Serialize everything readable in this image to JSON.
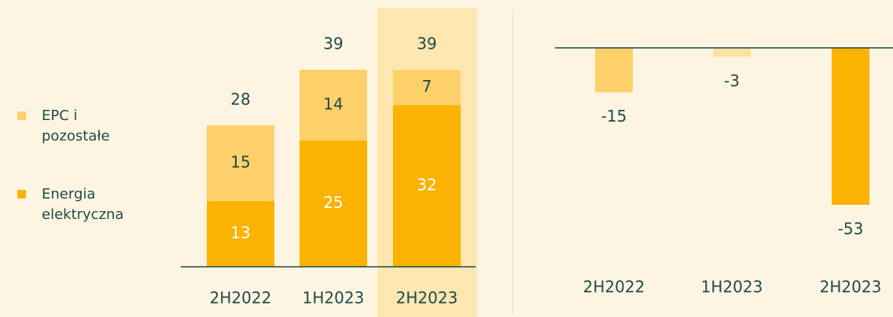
{
  "chart_data": [
    {
      "type": "bar",
      "stacked": true,
      "categories": [
        "2H2022",
        "1H2023",
        "2H2023"
      ],
      "series": [
        {
          "name": "Energia elektryczna",
          "color": "#fbb200",
          "label_color": "#ffffff",
          "values": [
            13,
            25,
            32
          ]
        },
        {
          "name": "EPC i pozostałe",
          "color": "#fdd06a",
          "label_color": "#1f4a4a",
          "values": [
            15,
            14,
            7
          ]
        }
      ],
      "totals": [
        28,
        39,
        39
      ],
      "highlight": "2H2023"
    },
    {
      "type": "bar",
      "categories": [
        "2H2022",
        "1H2023",
        "2H2023"
      ],
      "values": [
        -15,
        -3,
        -53
      ],
      "colors": [
        "#fdd06a",
        "#fde2a0",
        "#fbb200"
      ]
    }
  ]
}
